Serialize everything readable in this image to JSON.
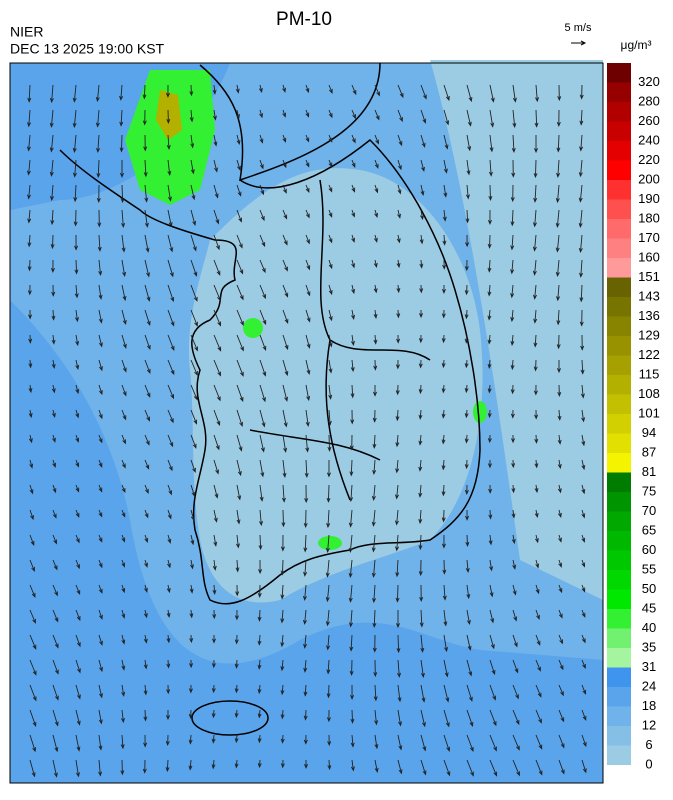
{
  "header": {
    "title": "PM-10",
    "source": "NIER",
    "time": "DEC 13 2025 19:00 KST",
    "wind_scale": "5 m/s",
    "unit": "μg/m³"
  },
  "legend": {
    "levels": [
      0,
      6,
      12,
      18,
      24,
      31,
      35,
      40,
      45,
      50,
      55,
      60,
      65,
      70,
      75,
      81,
      87,
      94,
      101,
      108,
      115,
      122,
      129,
      136,
      143,
      151,
      160,
      170,
      180,
      190,
      200,
      220,
      240,
      260,
      280,
      320
    ],
    "colors": [
      "#9ccbe4",
      "#86bfe6",
      "#70b2ea",
      "#5aa4ec",
      "#3f94ee",
      "#a4f4a0",
      "#72f070",
      "#33f033",
      "#00e800",
      "#00d800",
      "#00c800",
      "#00b800",
      "#00a800",
      "#009400",
      "#007c00",
      "#f4f400",
      "#e2e000",
      "#d2d000",
      "#c2c000",
      "#b4b000",
      "#a6a000",
      "#989200",
      "#888400",
      "#787400",
      "#686200",
      "#ff9a9a",
      "#ff8080",
      "#ff6a6a",
      "#ff5050",
      "#ff3030",
      "#ff0000",
      "#e40000",
      "#c80000",
      "#b00000",
      "#960000",
      "#6e0000"
    ]
  }
}
